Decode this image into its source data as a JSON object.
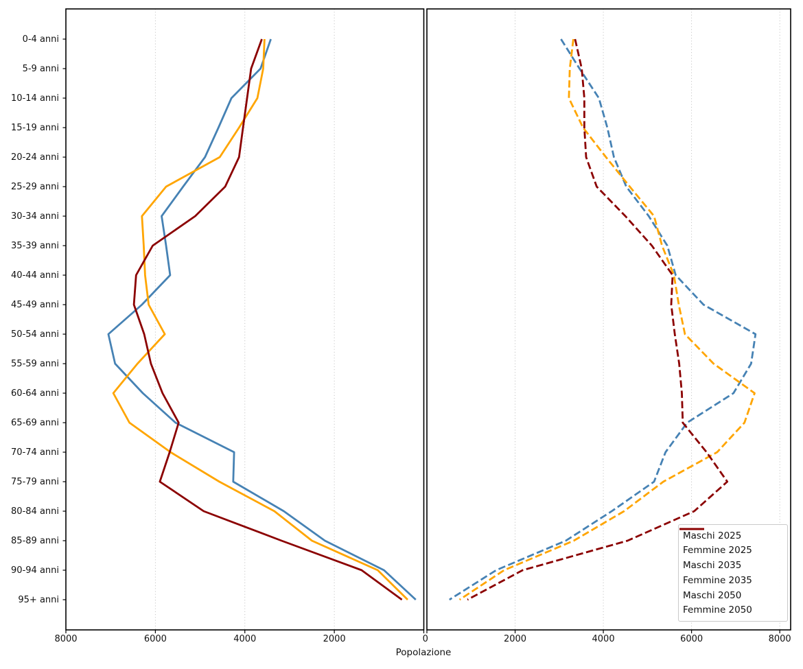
{
  "chart_data": {
    "type": "line",
    "layout": "population-pyramid-two-panels",
    "title": "",
    "xlabel": "Popolazione",
    "grid": true,
    "legend_position": "lower right",
    "x_max": 8000,
    "left_panel": {
      "gender": "Maschi",
      "x_ticks": [
        8000,
        6000,
        4000,
        2000,
        0
      ],
      "direction": "right-to-left"
    },
    "right_panel": {
      "gender": "Femmine",
      "x_ticks": [
        0,
        2000,
        4000,
        6000,
        8000
      ],
      "direction": "left-to-right"
    },
    "zero_tick_label": "0",
    "age_groups": [
      "0-4 anni",
      "5-9 anni",
      "10-14 anni",
      "15-19 anni",
      "20-24 anni",
      "25-29 anni",
      "30-34 anni",
      "35-39 anni",
      "40-44 anni",
      "45-49 anni",
      "50-54 anni",
      "55-59 anni",
      "60-64 anni",
      "65-69 anni",
      "70-74 anni",
      "75-79 anni",
      "80-84 anni",
      "85-89 anni",
      "90-94 anni",
      "95+ anni"
    ],
    "series": [
      {
        "name": "Maschi 2025",
        "panel": "left",
        "style": "solid",
        "color": "#4682B4",
        "values": [
          3420,
          3650,
          4300,
          4590,
          4890,
          5380,
          5860,
          5760,
          5670,
          6300,
          7050,
          6900,
          6280,
          5550,
          4240,
          4260,
          3130,
          2210,
          890,
          180
        ]
      },
      {
        "name": "Femmine 2025",
        "panel": "right",
        "style": "dashed",
        "color": "#4682B4",
        "values": [
          3040,
          3460,
          3900,
          4090,
          4240,
          4520,
          5030,
          5450,
          5640,
          6270,
          7450,
          7350,
          6950,
          5900,
          5410,
          5150,
          4190,
          3150,
          1570,
          510
        ]
      },
      {
        "name": "Maschi 2035",
        "panel": "left",
        "style": "solid",
        "color": "#FFA500",
        "values": [
          3560,
          3590,
          3720,
          4130,
          4560,
          5760,
          6300,
          6260,
          6230,
          6150,
          5790,
          6400,
          6940,
          6580,
          5660,
          4570,
          3340,
          2500,
          1030,
          360
        ]
      },
      {
        "name": "Femmine 2035",
        "panel": "right",
        "style": "dashed",
        "color": "#FFA500",
        "values": [
          3320,
          3240,
          3220,
          3540,
          4060,
          4600,
          5150,
          5330,
          5600,
          5710,
          5850,
          6500,
          7430,
          7200,
          6580,
          5360,
          4470,
          3330,
          1750,
          740
        ]
      },
      {
        "name": "Maschi 2050",
        "panel": "left",
        "style": "solid",
        "color": "#8B0000",
        "values": [
          3620,
          3860,
          3950,
          4040,
          4130,
          4440,
          5110,
          6060,
          6430,
          6480,
          6250,
          6100,
          5840,
          5480,
          5680,
          5900,
          4920,
          3180,
          1390,
          490
        ]
      },
      {
        "name": "Femmine 2050",
        "panel": "right",
        "style": "dashed",
        "color": "#8B0000",
        "values": [
          3360,
          3510,
          3570,
          3570,
          3610,
          3850,
          4500,
          5100,
          5570,
          5540,
          5620,
          5720,
          5780,
          5800,
          6340,
          6810,
          6060,
          4550,
          2170,
          920
        ]
      }
    ]
  },
  "colors": {
    "blue": "#4682B4",
    "orange": "#FFA500",
    "dark_red": "#8B0000",
    "grid": "#bfbfbf",
    "spine": "#000000",
    "legend_border": "#c9c9c9"
  }
}
